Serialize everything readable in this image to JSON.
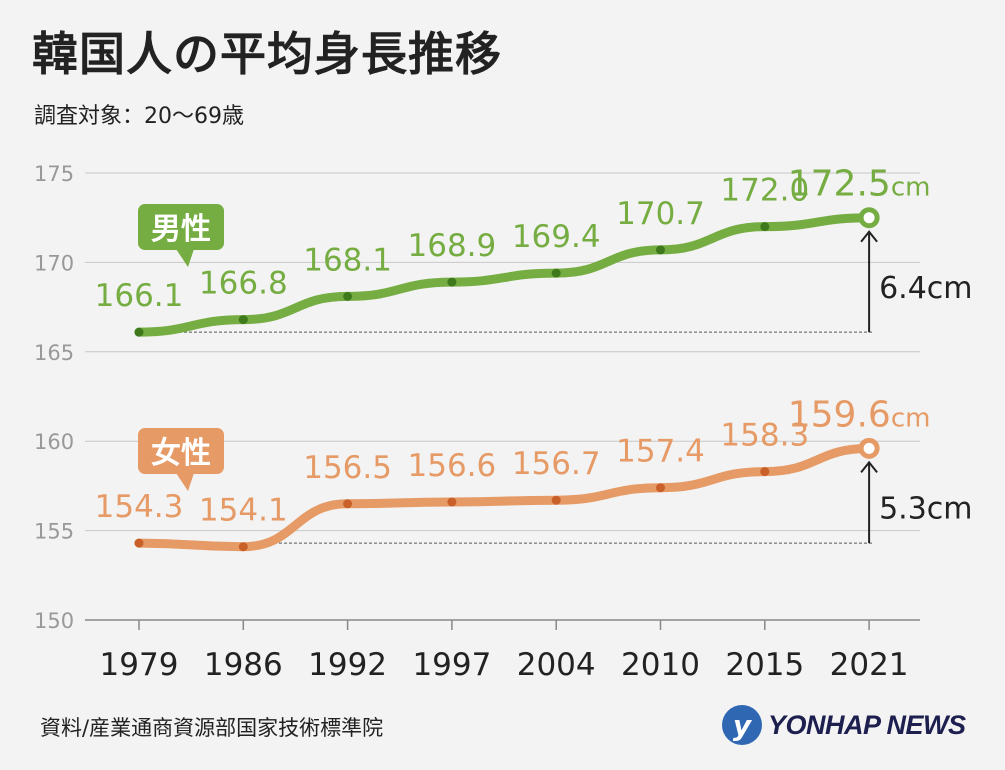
{
  "title": "韓国人の平均身長推移",
  "subtitle": "調査対象：20～69歳",
  "source": "資料/産業通商資源部国家技術標準院",
  "logo": {
    "text": "YONHAP NEWS",
    "mark": "y"
  },
  "chart_data": {
    "type": "line",
    "categories": [
      "1979",
      "1986",
      "1992",
      "1997",
      "2004",
      "2010",
      "2015",
      "2021"
    ],
    "ylim": [
      150,
      175
    ],
    "yticks": [
      150,
      155,
      160,
      165,
      170,
      175
    ],
    "grid": true,
    "unit": "cm",
    "series": [
      {
        "name": "男性",
        "color": "#76ad42",
        "dark": "#3e7a1c",
        "values": [
          166.1,
          166.8,
          168.1,
          168.9,
          169.4,
          170.7,
          172.0,
          172.5
        ],
        "labels": [
          "166.1",
          "166.8",
          "168.1",
          "168.9",
          "169.4",
          "170.7",
          "172.0",
          "172.5"
        ],
        "diff": "6.4cm"
      },
      {
        "name": "女性",
        "color": "#e69a66",
        "dark": "#c9602a",
        "values": [
          154.3,
          154.1,
          156.5,
          156.6,
          156.7,
          157.4,
          158.3,
          159.6
        ],
        "labels": [
          "154.3",
          "154.1",
          "156.5",
          "156.6",
          "156.7",
          "157.4",
          "158.3",
          "159.6"
        ],
        "diff": "5.3cm"
      }
    ]
  }
}
